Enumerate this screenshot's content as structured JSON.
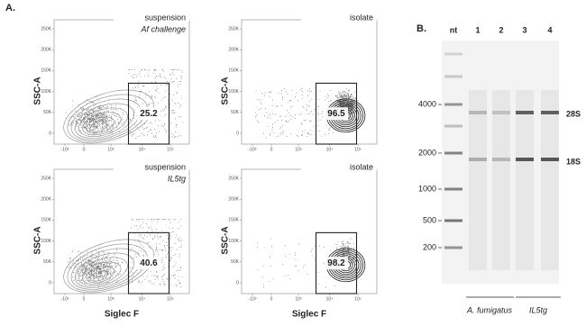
{
  "panel_a": {
    "label": "A.",
    "y_axis_label": "SSC-A",
    "x_axis_label": "Siglec F",
    "y_ticks": [
      "250K",
      "200K",
      "150K",
      "100K",
      "50K",
      "0"
    ],
    "x_ticks": [
      "-10³",
      "0",
      "10³",
      "10⁴",
      "10⁵"
    ],
    "plots": [
      {
        "title_lines": [
          "suspension",
          "Af challenge"
        ],
        "gate": "25.2"
      },
      {
        "title_lines": [
          "isolate"
        ],
        "gate": "96.5"
      },
      {
        "title_lines": [
          "suspension",
          "IL5tg"
        ],
        "gate": "40.6"
      },
      {
        "title_lines": [
          "isolate"
        ],
        "gate": "98.2"
      }
    ]
  },
  "panel_b": {
    "label": "B.",
    "lanes": [
      "nt",
      "1",
      "2",
      "3",
      "4"
    ],
    "ladder": [
      "4000",
      "2000",
      "1000",
      "500",
      "200"
    ],
    "bands": [
      "28S",
      "18S"
    ],
    "groups": [
      "A. fumigatus",
      "IL5tg"
    ]
  }
}
